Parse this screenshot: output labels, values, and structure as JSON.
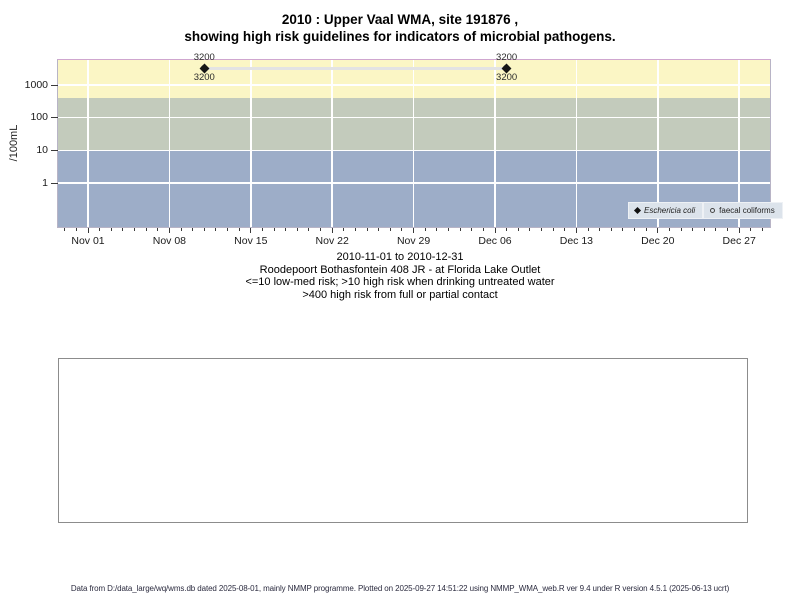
{
  "title": {
    "line1": "2010 : Upper Vaal WMA, site 191876 ,",
    "line2": "showing high risk guidelines for indicators of microbial pathogens."
  },
  "y_axis": {
    "label": "/100mL",
    "ticks": [
      "1000",
      "100",
      "10",
      "1"
    ]
  },
  "x_axis": {
    "ticks": [
      "Nov 01",
      "Nov 08",
      "Nov 15",
      "Nov 22",
      "Nov 29",
      "Dec 06",
      "Dec 13",
      "Dec 20",
      "Dec 27"
    ]
  },
  "legend": {
    "items": [
      {
        "label": "Eschericia coli",
        "symbol": "filled-diamond"
      },
      {
        "label": "faecal coliforms",
        "symbol": "open-circle"
      }
    ]
  },
  "caption": {
    "lines": [
      "2010-11-01 to 2010-12-31",
      "Roodepoort Bothasfontein 408 JR - at Florida Lake Outlet",
      "<=10 low-med risk; >10 high risk when drinking untreated water",
      ">400 high risk from full or partial contact"
    ]
  },
  "footer": {
    "text": "Data from D:/data_large/wq/wms.db dated 2025-08-01, mainly NMMP programme. Plotted on 2025-09-27 14:51:22 using NMMP_WMA_web.R ver 9.4 under R version 4.5.1 (2025-06-13 ucrt)"
  },
  "colors": {
    "band_high_risk_contact": "#fbf6c5",
    "band_high_risk_drinking": "#c3cbbc",
    "band_low_med_risk": "#9dadc8",
    "grid": "#ffffff",
    "series_line": "#e3e3e3",
    "point": "#161616",
    "plot_border_top": "#cfa6cf",
    "legend_bg": "#dce3eb"
  },
  "chart_data": {
    "type": "scatter",
    "title": "2010 : Upper Vaal WMA, site 191876 , showing high risk guidelines for indicators of microbial pathogens.",
    "ylabel": "/100mL",
    "y_scale": "log",
    "ylim_approx": [
      0.045,
      5800
    ],
    "y_tick_values": [
      1000,
      100,
      10,
      1
    ],
    "x_start_date": "2010-11-01",
    "x_end_date": "2010-12-31",
    "x_tick_labels": [
      "Nov 01",
      "Nov 08",
      "Nov 15",
      "Nov 22",
      "Nov 29",
      "Dec 06",
      "Dec 13",
      "Dec 20",
      "Dec 27"
    ],
    "grid": true,
    "legend_position": "bottom-right-inside",
    "bands": [
      {
        "min": 400,
        "max": 5800,
        "color": "#fbf6c5",
        "label": ">400 high risk from full or partial contact"
      },
      {
        "min": 10,
        "max": 400,
        "color": "#c3cbbc",
        "label": ">10 high risk when drinking untreated water"
      },
      {
        "min": 0.045,
        "max": 10,
        "color": "#9dadc8",
        "label": "<=10 low-med risk"
      }
    ],
    "series": [
      {
        "name": "Eschericia coli",
        "symbol": "filled-diamond",
        "label_side": "below",
        "line_color": "#e3e3e3",
        "points": [
          {
            "date": "2010-11-11",
            "value": 3200,
            "label": "3200"
          },
          {
            "date": "2010-12-07",
            "value": 3200,
            "label": "3200"
          }
        ]
      },
      {
        "name": "faecal coliforms",
        "symbol": "open-circle",
        "label_side": "above",
        "line_color": "#e3e3e3",
        "points": [
          {
            "date": "2010-11-11",
            "value": 3200,
            "label": "3200"
          },
          {
            "date": "2010-12-07",
            "value": 3200,
            "label": "3200"
          }
        ]
      }
    ]
  }
}
